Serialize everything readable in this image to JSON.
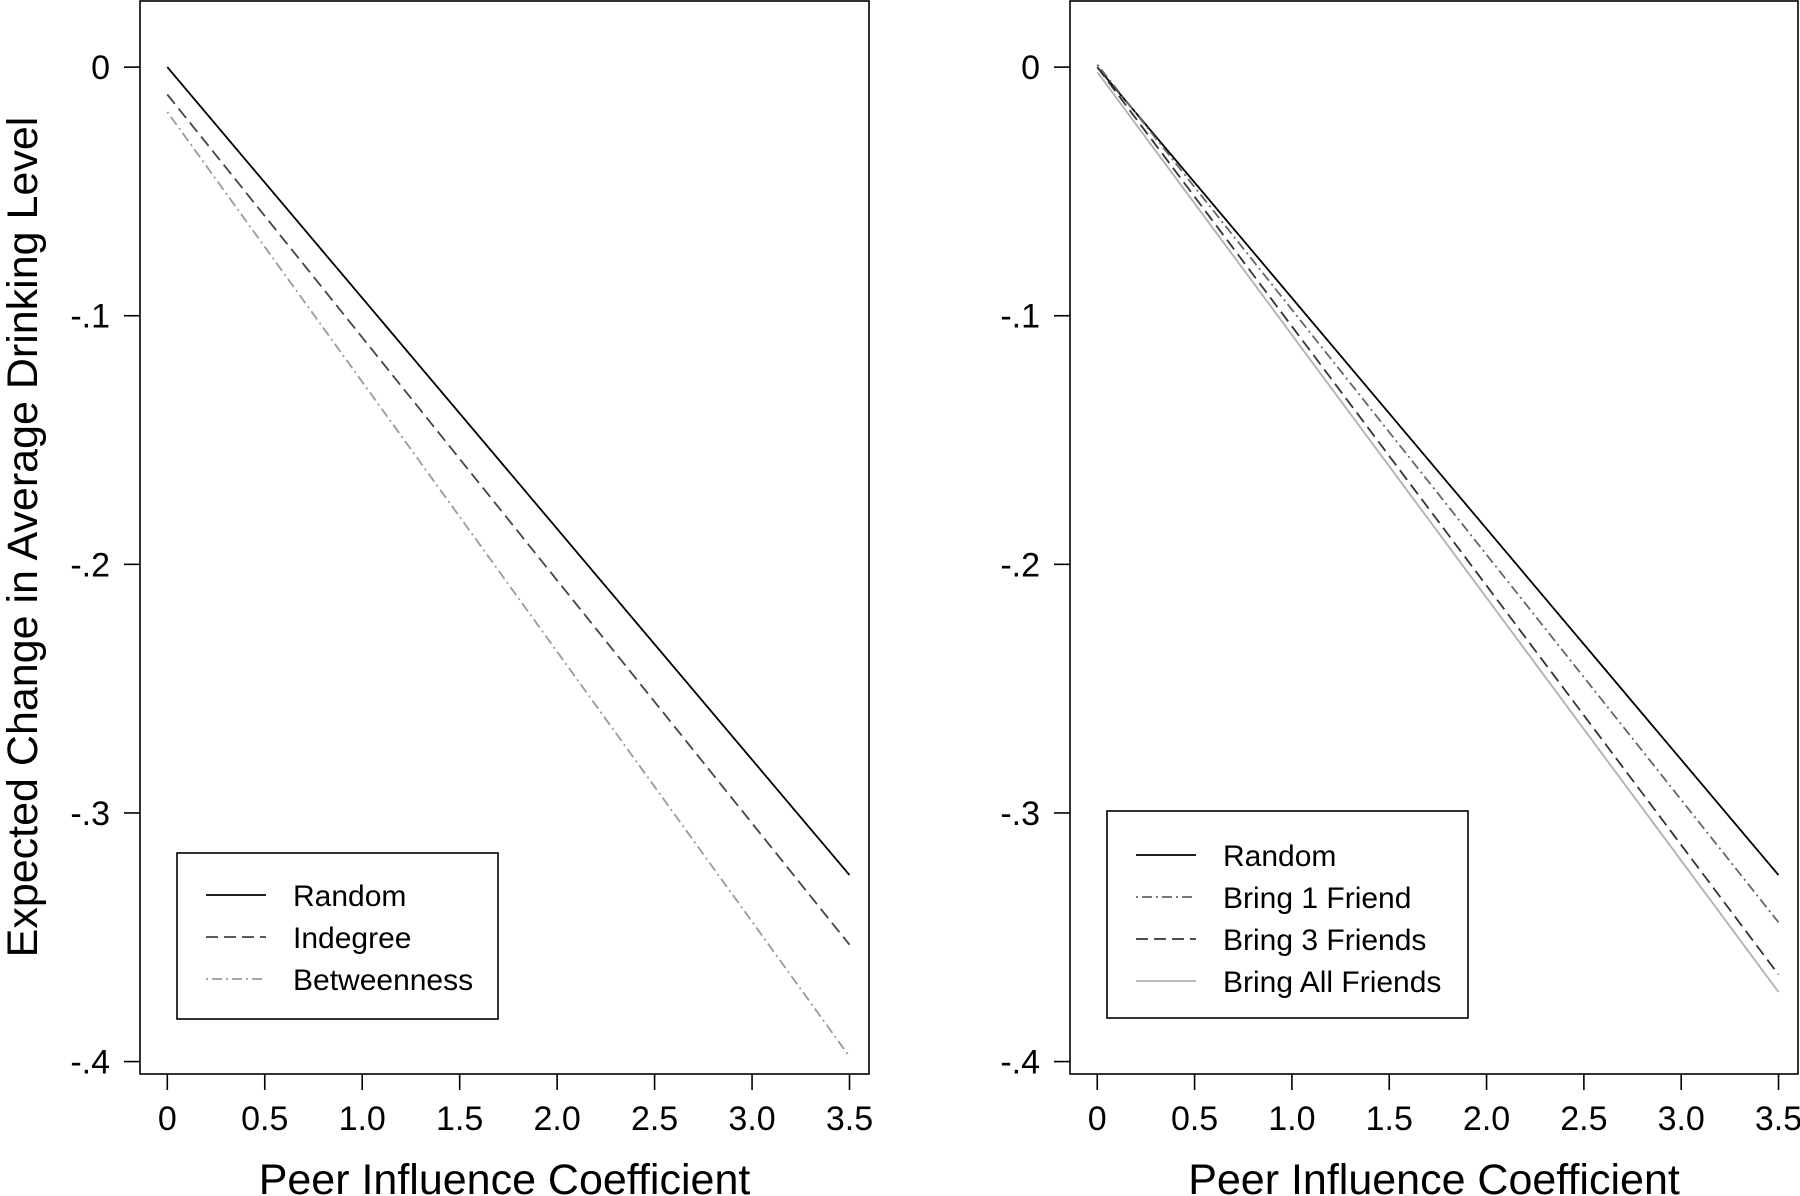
{
  "chart_data": [
    {
      "type": "line",
      "title": "",
      "xlabel": "Peer Influence Coefficient",
      "ylabel": "Expected Change in Average Drinking Level",
      "xlim": [
        -0.14,
        3.6
      ],
      "ylim": [
        -0.405,
        0.027
      ],
      "xticks": [
        0,
        0.5,
        1.0,
        1.5,
        2.0,
        2.5,
        3.0,
        3.5
      ],
      "xtick_labels": [
        "0",
        "0.5",
        "1.0",
        "1.5",
        "2.0",
        "2.5",
        "3.0",
        "3.5"
      ],
      "yticks": [
        0,
        -0.1,
        -0.2,
        -0.3,
        -0.4
      ],
      "ytick_labels": [
        "0",
        "-.1",
        "-.2",
        "-.3",
        "-.4"
      ],
      "grid": false,
      "legend_position": "bottom-left",
      "series": [
        {
          "name": "Random",
          "style": "solid",
          "color": "#000000",
          "x": [
            0,
            3.5
          ],
          "y": [
            0.0,
            -0.325
          ]
        },
        {
          "name": "Indegree",
          "style": "dashed",
          "color": "#444444",
          "x": [
            0,
            3.5
          ],
          "y": [
            -0.011,
            -0.353
          ]
        },
        {
          "name": "Betweenness",
          "style": "dotdash",
          "color": "#9a9a9a",
          "x": [
            0,
            3.5
          ],
          "y": [
            -0.018,
            -0.398
          ]
        }
      ]
    },
    {
      "type": "line",
      "title": "",
      "xlabel": "Peer Influence Coefficient",
      "ylabel": "",
      "xlim": [
        -0.14,
        3.6
      ],
      "ylim": [
        -0.405,
        0.027
      ],
      "xticks": [
        0,
        0.5,
        1.0,
        1.5,
        2.0,
        2.5,
        3.0,
        3.5
      ],
      "xtick_labels": [
        "0",
        "0.5",
        "1.0",
        "1.5",
        "2.0",
        "2.5",
        "3.0",
        "3.5"
      ],
      "yticks": [
        0,
        -0.1,
        -0.2,
        -0.3,
        -0.4
      ],
      "ytick_labels": [
        "0",
        "-.1",
        "-.2",
        "-.3",
        "-.4"
      ],
      "grid": false,
      "legend_position": "bottom-left",
      "series": [
        {
          "name": "Random",
          "style": "solid",
          "color": "#000000",
          "x": [
            0,
            3.5
          ],
          "y": [
            0.0,
            -0.325
          ]
        },
        {
          "name": "Bring 1 Friend",
          "style": "dotdash",
          "color": "#666666",
          "x": [
            0,
            3.5
          ],
          "y": [
            0.001,
            -0.344
          ]
        },
        {
          "name": "Bring 3 Friends",
          "style": "dashed",
          "color": "#333333",
          "x": [
            0,
            3.5
          ],
          "y": [
            0.0,
            -0.365
          ]
        },
        {
          "name": "Bring All Friends",
          "style": "solid",
          "color": "#b0b0b0",
          "x": [
            0,
            3.5
          ],
          "y": [
            -0.002,
            -0.372
          ]
        }
      ]
    }
  ]
}
